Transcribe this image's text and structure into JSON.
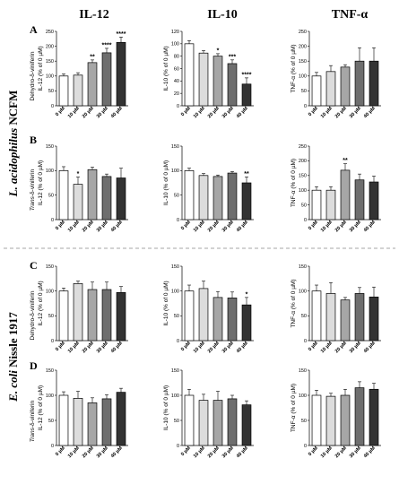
{
  "column_headers": [
    "IL-12",
    "IL-10",
    "TNF-α"
  ],
  "row_letters": [
    "A",
    "B",
    "C",
    "D"
  ],
  "side_labels": [
    {
      "italic": "L. acidophilus",
      "plain": " NCFM"
    },
    {
      "italic": "E. coli",
      "plain": " Nissle 1917"
    }
  ],
  "row_compounds": [
    {
      "prefix": "Dehydro-δ-viniferin",
      "prefix_italic": false
    },
    {
      "prefix": "Trans",
      "rest": "-δ-viniferin",
      "prefix_italic": true
    },
    {
      "prefix": "Dehydro-δ-viniferin",
      "prefix_italic": false
    },
    {
      "prefix": "Trans",
      "rest": "-δ-viniferin",
      "prefix_italic": true
    }
  ],
  "colors": {
    "bars": [
      "#ffffff",
      "#dcdcdc",
      "#a6a6a6",
      "#6e6e6e",
      "#333333"
    ],
    "edge": "#000000",
    "divider": "#888888"
  },
  "chart_data": [
    {
      "type": "bar",
      "row": "A",
      "col": 0,
      "ylabel": "IL-12 (% of 0 µM)",
      "categories": [
        "0 µM",
        "10 µM",
        "20 µM",
        "30 µM",
        "40 µM"
      ],
      "values": [
        100,
        103,
        145,
        178,
        213
      ],
      "errors": [
        7,
        8,
        9,
        15,
        18
      ],
      "stars": [
        "",
        "",
        "**",
        "****",
        "****"
      ],
      "ylim": [
        0,
        250
      ],
      "yticks": [
        0,
        50,
        100,
        150,
        200,
        250
      ]
    },
    {
      "type": "bar",
      "row": "A",
      "col": 1,
      "ylabel": "IL-10 (% of 0 µM)",
      "categories": [
        "0 µM",
        "10 µM",
        "20 µM",
        "30 µM",
        "40 µM"
      ],
      "values": [
        100,
        85,
        80,
        68,
        35
      ],
      "errors": [
        5,
        4,
        4,
        6,
        10
      ],
      "stars": [
        "",
        "",
        "*",
        "***",
        "****"
      ],
      "ylim": [
        0,
        120
      ],
      "yticks": [
        0,
        20,
        40,
        60,
        80,
        100,
        120
      ]
    },
    {
      "type": "bar",
      "row": "A",
      "col": 2,
      "ylabel": "TNF-α (% of 0 µM)",
      "categories": [
        "0 µM",
        "10 µM",
        "20 µM",
        "30 µM",
        "40 µM"
      ],
      "values": [
        100,
        115,
        130,
        150,
        150
      ],
      "errors": [
        12,
        20,
        8,
        45,
        45
      ],
      "stars": [
        "",
        "",
        "",
        "",
        ""
      ],
      "ylim": [
        0,
        250
      ],
      "yticks": [
        0,
        50,
        100,
        150,
        200,
        250
      ]
    },
    {
      "type": "bar",
      "row": "B",
      "col": 0,
      "ylabel": "IL-12 (% of 0 µM)",
      "categories": [
        "0 µM",
        "10 µM",
        "20 µM",
        "30 µM",
        "40 µM"
      ],
      "values": [
        100,
        72,
        102,
        88,
        85
      ],
      "errors": [
        8,
        15,
        5,
        5,
        20
      ],
      "stars": [
        "",
        "*",
        "",
        "",
        ""
      ],
      "ylim": [
        0,
        150
      ],
      "yticks": [
        0,
        50,
        100,
        150
      ]
    },
    {
      "type": "bar",
      "row": "B",
      "col": 1,
      "ylabel": "IL-10 (% of 0 µM)",
      "categories": [
        "0 µM",
        "10 µM",
        "20 µM",
        "30 µM",
        "40 µM"
      ],
      "values": [
        100,
        90,
        88,
        95,
        75
      ],
      "errors": [
        5,
        4,
        3,
        3,
        12
      ],
      "stars": [
        "",
        "",
        "",
        "",
        "**"
      ],
      "ylim": [
        0,
        150
      ],
      "yticks": [
        0,
        50,
        100,
        150
      ]
    },
    {
      "type": "bar",
      "row": "B",
      "col": 2,
      "ylabel": "TNF-α (% of 0 µM)",
      "categories": [
        "0 µM",
        "10 µM",
        "20 µM",
        "30 µM",
        "40 µM"
      ],
      "values": [
        100,
        100,
        168,
        135,
        128
      ],
      "errors": [
        12,
        12,
        22,
        20,
        20
      ],
      "stars": [
        "",
        "",
        "**",
        "",
        ""
      ],
      "ylim": [
        0,
        250
      ],
      "yticks": [
        0,
        50,
        100,
        150,
        200,
        250
      ]
    },
    {
      "type": "bar",
      "row": "C",
      "col": 0,
      "ylabel": "IL-12 (% of 0 µM)",
      "categories": [
        "0 µM",
        "10 µM",
        "20 µM",
        "30 µM",
        "40 µM"
      ],
      "values": [
        100,
        115,
        103,
        103,
        97
      ],
      "errors": [
        6,
        5,
        15,
        15,
        12
      ],
      "stars": [
        "",
        "",
        "",
        "",
        ""
      ],
      "ylim": [
        0,
        150
      ],
      "yticks": [
        0,
        50,
        100,
        150
      ]
    },
    {
      "type": "bar",
      "row": "C",
      "col": 1,
      "ylabel": "IL-10 (% of 0 µM)",
      "categories": [
        "0 µM",
        "10 µM",
        "20 µM",
        "30 µM",
        "40 µM"
      ],
      "values": [
        100,
        105,
        87,
        86,
        72
      ],
      "errors": [
        12,
        15,
        12,
        12,
        15
      ],
      "stars": [
        "",
        "",
        "",
        "",
        "*"
      ],
      "ylim": [
        0,
        150
      ],
      "yticks": [
        0,
        50,
        100,
        150
      ]
    },
    {
      "type": "bar",
      "row": "C",
      "col": 2,
      "ylabel": "TNF-α (% of 0 µM)",
      "categories": [
        "0 µM",
        "10 µM",
        "20 µM",
        "30 µM",
        "40 µM"
      ],
      "values": [
        100,
        95,
        82,
        95,
        88
      ],
      "errors": [
        12,
        22,
        5,
        12,
        20
      ],
      "stars": [
        "",
        "",
        "",
        "",
        ""
      ],
      "ylim": [
        0,
        150
      ],
      "yticks": [
        0,
        50,
        100,
        150
      ]
    },
    {
      "type": "bar",
      "row": "D",
      "col": 0,
      "ylabel": "IL-12 (% of 0 µM)",
      "categories": [
        "0 µM",
        "10 µM",
        "20 µM",
        "30 µM",
        "40 µM"
      ],
      "values": [
        100,
        94,
        85,
        93,
        106
      ],
      "errors": [
        7,
        14,
        10,
        8,
        8
      ],
      "stars": [
        "",
        "",
        "",
        "",
        ""
      ],
      "ylim": [
        0,
        150
      ],
      "yticks": [
        0,
        50,
        100,
        150
      ]
    },
    {
      "type": "bar",
      "row": "D",
      "col": 1,
      "ylabel": "IL-10 (% of 0 µM)",
      "categories": [
        "0 µM",
        "10 µM",
        "20 µM",
        "30 µM",
        "40 µM"
      ],
      "values": [
        100,
        90,
        90,
        93,
        81
      ],
      "errors": [
        12,
        12,
        18,
        7,
        8
      ],
      "stars": [
        "",
        "",
        "",
        "",
        ""
      ],
      "ylim": [
        0,
        150
      ],
      "yticks": [
        0,
        50,
        100,
        150
      ]
    },
    {
      "type": "bar",
      "row": "D",
      "col": 2,
      "ylabel": "TNF-α (% of 0 µM)",
      "categories": [
        "0 µM",
        "10 µM",
        "20 µM",
        "30 µM",
        "40 µM"
      ],
      "values": [
        100,
        98,
        100,
        115,
        112
      ],
      "errors": [
        10,
        6,
        12,
        12,
        12
      ],
      "stars": [
        "",
        "",
        "",
        "",
        ""
      ],
      "ylim": [
        0,
        150
      ],
      "yticks": [
        0,
        50,
        100,
        150
      ]
    }
  ]
}
